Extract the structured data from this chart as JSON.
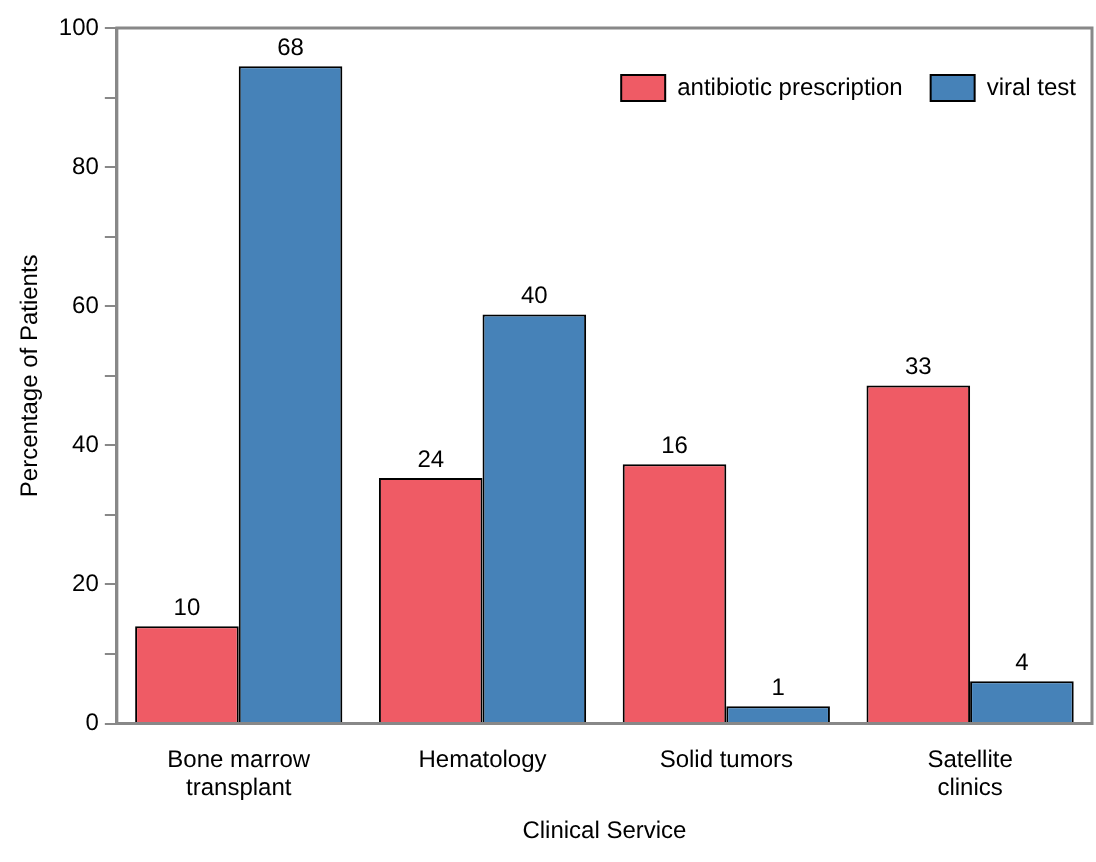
{
  "chart_data": {
    "type": "bar",
    "xlabel": "Clinical Service",
    "ylabel": "Percentage of Patients",
    "categories": [
      "Bone marrow transplant",
      "Hematology",
      "Solid tumors",
      "Satellite clinics"
    ],
    "series": [
      {
        "name": "antibiotic prescription",
        "color": "#ef5b65",
        "values": [
          14,
          35.3,
          37.3,
          48.6
        ]
      },
      {
        "name": "viral test",
        "color": "#4682b8",
        "values": [
          94.5,
          58.8,
          2.5,
          6.1
        ]
      }
    ],
    "annotations": [
      {
        "text": "10",
        "x": "Bone marrow transplant",
        "y": 14
      },
      {
        "text": "24",
        "x": "Hematology",
        "y": 35.3
      },
      {
        "text": "16",
        "x": "Solid tumors",
        "y": 37.3
      },
      {
        "text": "33",
        "x": "Satellite clinics",
        "y": 48.6
      },
      {
        "text": "68",
        "x": "Bone marrow transplant",
        "y": 94.5
      },
      {
        "text": "40",
        "x": "Hematology",
        "y": 58.8
      },
      {
        "text": "1",
        "x": "Solid tumors",
        "y": 2.5
      },
      {
        "text": "4",
        "x": "Satellite clinics",
        "y": 6.1
      }
    ],
    "ylim": [
      0,
      100
    ],
    "yticks": [
      0,
      {
        "value": 10,
        "label": null
      },
      20,
      {
        "value": 30,
        "label": null
      },
      40,
      {
        "value": 50,
        "label": null
      },
      60,
      {
        "value": 70,
        "label": null
      },
      80,
      {
        "value": 90,
        "label": null
      },
      100
    ],
    "grid": false,
    "legend": "top right"
  }
}
